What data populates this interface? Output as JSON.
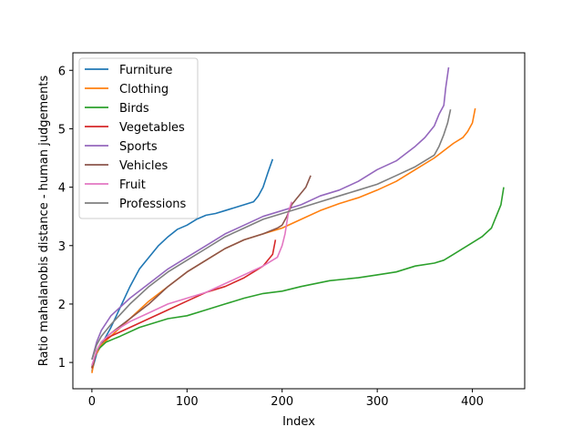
{
  "chart_data": {
    "type": "line",
    "title": "",
    "xlabel": "Index",
    "ylabel": "Ratio mahalanobis distance - human judgements",
    "xlim": [
      -20,
      455
    ],
    "ylim": [
      0.55,
      6.3
    ],
    "xticks": [
      0,
      100,
      200,
      300,
      400
    ],
    "yticks": [
      1,
      2,
      3,
      4,
      5,
      6
    ],
    "grid": false,
    "legend_position": "upper left",
    "series": [
      {
        "name": "Furniture",
        "color": "#1f77b4",
        "x": [
          0,
          5,
          10,
          15,
          20,
          30,
          40,
          50,
          60,
          70,
          80,
          90,
          100,
          110,
          120,
          130,
          140,
          150,
          160,
          170,
          175,
          180,
          185,
          190
        ],
        "y": [
          0.85,
          1.15,
          1.3,
          1.45,
          1.6,
          1.95,
          2.3,
          2.6,
          2.8,
          3.0,
          3.15,
          3.28,
          3.35,
          3.45,
          3.52,
          3.55,
          3.6,
          3.65,
          3.7,
          3.75,
          3.85,
          4.0,
          4.25,
          4.48
        ]
      },
      {
        "name": "Clothing",
        "color": "#ff7f0e",
        "x": [
          0,
          3,
          10,
          20,
          40,
          60,
          80,
          100,
          120,
          140,
          160,
          180,
          200,
          220,
          240,
          260,
          280,
          300,
          320,
          340,
          360,
          380,
          390,
          395,
          400,
          403
        ],
        "y": [
          0.82,
          1.1,
          1.3,
          1.45,
          1.75,
          2.05,
          2.3,
          2.55,
          2.75,
          2.95,
          3.1,
          3.2,
          3.3,
          3.45,
          3.6,
          3.72,
          3.82,
          3.95,
          4.1,
          4.3,
          4.5,
          4.75,
          4.85,
          4.95,
          5.1,
          5.35
        ]
      },
      {
        "name": "Birds",
        "color": "#2ca02c",
        "x": [
          0,
          5,
          15,
          30,
          50,
          80,
          100,
          120,
          140,
          160,
          180,
          200,
          220,
          250,
          280,
          300,
          320,
          340,
          360,
          370,
          380,
          395,
          410,
          420,
          425,
          430,
          433
        ],
        "y": [
          0.9,
          1.2,
          1.35,
          1.45,
          1.6,
          1.75,
          1.8,
          1.9,
          2.0,
          2.1,
          2.18,
          2.22,
          2.3,
          2.4,
          2.45,
          2.5,
          2.55,
          2.65,
          2.7,
          2.75,
          2.85,
          3.0,
          3.15,
          3.3,
          3.5,
          3.7,
          4.0
        ]
      },
      {
        "name": "Vegetables",
        "color": "#d62728",
        "x": [
          0,
          5,
          10,
          20,
          40,
          60,
          80,
          100,
          120,
          140,
          160,
          170,
          180,
          185,
          190,
          193
        ],
        "y": [
          0.9,
          1.2,
          1.35,
          1.45,
          1.6,
          1.75,
          1.9,
          2.05,
          2.2,
          2.3,
          2.45,
          2.55,
          2.65,
          2.75,
          2.85,
          3.1
        ]
      },
      {
        "name": "Sports",
        "color": "#9467bd",
        "x": [
          0,
          5,
          10,
          20,
          40,
          60,
          80,
          100,
          120,
          140,
          160,
          180,
          200,
          220,
          240,
          260,
          280,
          300,
          320,
          340,
          350,
          360,
          365,
          370,
          372,
          375
        ],
        "y": [
          1.05,
          1.35,
          1.55,
          1.8,
          2.1,
          2.35,
          2.6,
          2.8,
          3.0,
          3.2,
          3.35,
          3.5,
          3.6,
          3.7,
          3.85,
          3.95,
          4.1,
          4.3,
          4.45,
          4.7,
          4.85,
          5.05,
          5.25,
          5.4,
          5.7,
          6.05
        ]
      },
      {
        "name": "Vehicles",
        "color": "#8c564b",
        "x": [
          0,
          5,
          10,
          20,
          40,
          60,
          80,
          100,
          120,
          140,
          160,
          180,
          195,
          200,
          205,
          210,
          215,
          220,
          225,
          230
        ],
        "y": [
          0.92,
          1.2,
          1.35,
          1.5,
          1.75,
          2.0,
          2.3,
          2.55,
          2.75,
          2.95,
          3.1,
          3.2,
          3.3,
          3.35,
          3.5,
          3.7,
          3.8,
          3.9,
          4.0,
          4.2
        ]
      },
      {
        "name": "Fruit",
        "color": "#e377c2",
        "x": [
          0,
          5,
          10,
          20,
          40,
          60,
          80,
          100,
          120,
          140,
          160,
          180,
          195,
          200,
          203,
          205,
          207,
          210
        ],
        "y": [
          0.95,
          1.2,
          1.35,
          1.5,
          1.7,
          1.85,
          2.0,
          2.1,
          2.2,
          2.35,
          2.5,
          2.65,
          2.8,
          3.0,
          3.2,
          3.4,
          3.6,
          3.75
        ]
      },
      {
        "name": "Professions",
        "color": "#7f7f7f",
        "x": [
          0,
          5,
          10,
          20,
          40,
          60,
          80,
          100,
          120,
          140,
          160,
          180,
          200,
          220,
          240,
          260,
          280,
          300,
          320,
          340,
          360,
          365,
          370,
          374,
          377
        ],
        "y": [
          1.05,
          1.3,
          1.45,
          1.65,
          2.0,
          2.3,
          2.55,
          2.75,
          2.95,
          3.15,
          3.3,
          3.45,
          3.55,
          3.65,
          3.75,
          3.85,
          3.95,
          4.05,
          4.2,
          4.35,
          4.55,
          4.7,
          4.9,
          5.1,
          5.33
        ]
      }
    ]
  }
}
